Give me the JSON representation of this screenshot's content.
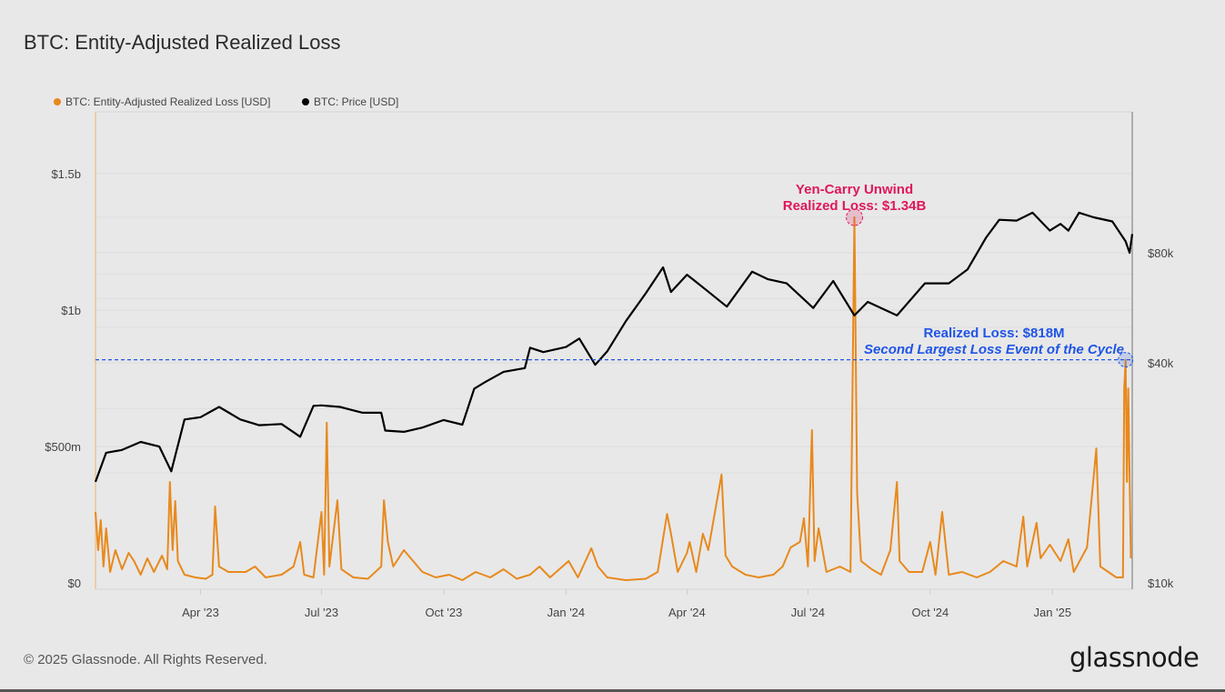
{
  "title": "BTC: Entity-Adjusted Realized Loss",
  "footer": "© 2025 Glassnode. All Rights Reserved.",
  "logo": "glassnode",
  "colors": {
    "loss": "#e8891c",
    "price": "#000000",
    "yen_annotation": "#e0175a",
    "second_annotation": "#1f55e6",
    "background": "#e8e8e8"
  },
  "chart_data": {
    "type": "line",
    "title": "BTC: Entity-Adjusted Realized Loss",
    "xlim": [
      "2023-01-12",
      "2025-03-02"
    ],
    "x_ticks": [
      {
        "date": "2023-04-01",
        "label": "Apr '23"
      },
      {
        "date": "2023-07-01",
        "label": "Jul '23"
      },
      {
        "date": "2023-10-01",
        "label": "Oct '23"
      },
      {
        "date": "2024-01-01",
        "label": "Jan '24"
      },
      {
        "date": "2024-04-01",
        "label": "Apr '24"
      },
      {
        "date": "2024-07-01",
        "label": "Jul '24"
      },
      {
        "date": "2024-10-01",
        "label": "Oct '24"
      },
      {
        "date": "2025-01-01",
        "label": "Jan '25"
      }
    ],
    "left_axis": {
      "scale": "linear",
      "unit": "USD millions",
      "ylim": [
        0,
        1750
      ],
      "ticks": [
        {
          "value": 0,
          "label": "$0"
        },
        {
          "value": 500,
          "label": "$500m"
        },
        {
          "value": 1000,
          "label": "$1b"
        },
        {
          "value": 1500,
          "label": "$1.5b"
        }
      ]
    },
    "right_axis": {
      "scale": "log",
      "unit": "USD",
      "ylim": [
        10000,
        290000
      ],
      "ticks": [
        {
          "value": 10000,
          "label": "$10k"
        },
        {
          "value": 40000,
          "label": "$40k"
        },
        {
          "value": 80000,
          "label": "$80k"
        }
      ]
    },
    "legend_position": "top-left",
    "series": [
      {
        "name": "BTC: Entity-Adjusted Realized Loss [USD]",
        "axis": "left",
        "color": "#e8891c",
        "points": [
          [
            "2023-01-12",
            260
          ],
          [
            "2023-01-14",
            120
          ],
          [
            "2023-01-16",
            230
          ],
          [
            "2023-01-18",
            60
          ],
          [
            "2023-01-20",
            200
          ],
          [
            "2023-01-23",
            40
          ],
          [
            "2023-01-27",
            120
          ],
          [
            "2023-02-01",
            50
          ],
          [
            "2023-02-06",
            110
          ],
          [
            "2023-02-10",
            80
          ],
          [
            "2023-02-15",
            30
          ],
          [
            "2023-02-20",
            90
          ],
          [
            "2023-02-25",
            40
          ],
          [
            "2023-03-03",
            100
          ],
          [
            "2023-03-07",
            50
          ],
          [
            "2023-03-09",
            370
          ],
          [
            "2023-03-11",
            120
          ],
          [
            "2023-03-13",
            300
          ],
          [
            "2023-03-15",
            80
          ],
          [
            "2023-03-20",
            30
          ],
          [
            "2023-03-28",
            20
          ],
          [
            "2023-04-05",
            15
          ],
          [
            "2023-04-10",
            30
          ],
          [
            "2023-04-12",
            280
          ],
          [
            "2023-04-15",
            60
          ],
          [
            "2023-04-22",
            40
          ],
          [
            "2023-05-05",
            40
          ],
          [
            "2023-05-12",
            60
          ],
          [
            "2023-05-20",
            20
          ],
          [
            "2023-06-01",
            30
          ],
          [
            "2023-06-10",
            60
          ],
          [
            "2023-06-15",
            150
          ],
          [
            "2023-06-18",
            30
          ],
          [
            "2023-06-25",
            20
          ],
          [
            "2023-07-01",
            260
          ],
          [
            "2023-07-03",
            30
          ],
          [
            "2023-07-05",
            587
          ],
          [
            "2023-07-07",
            60
          ],
          [
            "2023-07-13",
            303
          ],
          [
            "2023-07-16",
            50
          ],
          [
            "2023-07-25",
            20
          ],
          [
            "2023-08-05",
            15
          ],
          [
            "2023-08-15",
            60
          ],
          [
            "2023-08-17",
            303
          ],
          [
            "2023-08-20",
            150
          ],
          [
            "2023-08-24",
            60
          ],
          [
            "2023-09-01",
            120
          ],
          [
            "2023-09-08",
            80
          ],
          [
            "2023-09-15",
            40
          ],
          [
            "2023-09-25",
            20
          ],
          [
            "2023-10-05",
            30
          ],
          [
            "2023-10-15",
            10
          ],
          [
            "2023-10-25",
            40
          ],
          [
            "2023-11-05",
            20
          ],
          [
            "2023-11-15",
            50
          ],
          [
            "2023-11-25",
            15
          ],
          [
            "2023-12-05",
            30
          ],
          [
            "2023-12-12",
            60
          ],
          [
            "2023-12-20",
            20
          ],
          [
            "2024-01-03",
            80
          ],
          [
            "2024-01-10",
            20
          ],
          [
            "2024-01-20",
            127
          ],
          [
            "2024-01-25",
            60
          ],
          [
            "2024-02-01",
            20
          ],
          [
            "2024-02-15",
            10
          ],
          [
            "2024-03-01",
            15
          ],
          [
            "2024-03-10",
            40
          ],
          [
            "2024-03-17",
            253
          ],
          [
            "2024-03-20",
            180
          ],
          [
            "2024-03-25",
            40
          ],
          [
            "2024-04-01",
            110
          ],
          [
            "2024-04-03",
            150
          ],
          [
            "2024-04-08",
            40
          ],
          [
            "2024-04-13",
            180
          ],
          [
            "2024-04-17",
            120
          ],
          [
            "2024-04-27",
            397
          ],
          [
            "2024-04-30",
            100
          ],
          [
            "2024-05-05",
            60
          ],
          [
            "2024-05-15",
            30
          ],
          [
            "2024-05-25",
            20
          ],
          [
            "2024-06-05",
            30
          ],
          [
            "2024-06-12",
            60
          ],
          [
            "2024-06-18",
            130
          ],
          [
            "2024-06-25",
            150
          ],
          [
            "2024-06-28",
            237
          ],
          [
            "2024-07-01",
            60
          ],
          [
            "2024-07-04",
            560
          ],
          [
            "2024-07-06",
            80
          ],
          [
            "2024-07-09",
            200
          ],
          [
            "2024-07-15",
            40
          ],
          [
            "2024-07-25",
            60
          ],
          [
            "2024-08-02",
            40
          ],
          [
            "2024-08-05",
            1340
          ],
          [
            "2024-08-07",
            330
          ],
          [
            "2024-08-10",
            80
          ],
          [
            "2024-08-18",
            50
          ],
          [
            "2024-08-25",
            30
          ],
          [
            "2024-09-01",
            120
          ],
          [
            "2024-09-06",
            370
          ],
          [
            "2024-09-08",
            80
          ],
          [
            "2024-09-15",
            40
          ],
          [
            "2024-09-25",
            40
          ],
          [
            "2024-10-01",
            150
          ],
          [
            "2024-10-05",
            30
          ],
          [
            "2024-10-10",
            260
          ],
          [
            "2024-10-15",
            30
          ],
          [
            "2024-10-25",
            40
          ],
          [
            "2024-11-05",
            20
          ],
          [
            "2024-11-15",
            40
          ],
          [
            "2024-11-25",
            80
          ],
          [
            "2024-12-05",
            60
          ],
          [
            "2024-12-10",
            243
          ],
          [
            "2024-12-13",
            60
          ],
          [
            "2024-12-20",
            220
          ],
          [
            "2024-12-23",
            90
          ],
          [
            "2024-12-30",
            140
          ],
          [
            "2025-01-07",
            80
          ],
          [
            "2025-01-13",
            160
          ],
          [
            "2025-01-17",
            40
          ],
          [
            "2025-01-27",
            130
          ],
          [
            "2025-02-03",
            493
          ],
          [
            "2025-02-06",
            60
          ],
          [
            "2025-02-12",
            40
          ],
          [
            "2025-02-18",
            20
          ],
          [
            "2025-02-23",
            20
          ],
          [
            "2025-02-24",
            713
          ],
          [
            "2025-02-25",
            818
          ],
          [
            "2025-02-26",
            370
          ],
          [
            "2025-02-27",
            713
          ],
          [
            "2025-03-01",
            90
          ]
        ]
      },
      {
        "name": "BTC: Price [USD]",
        "axis": "right",
        "color": "#000000",
        "points": [
          [
            "2023-01-12",
            18900
          ],
          [
            "2023-01-20",
            22700
          ],
          [
            "2023-02-01",
            23100
          ],
          [
            "2023-02-15",
            24300
          ],
          [
            "2023-03-01",
            23600
          ],
          [
            "2023-03-10",
            20200
          ],
          [
            "2023-03-20",
            28000
          ],
          [
            "2023-04-01",
            28400
          ],
          [
            "2023-04-15",
            30300
          ],
          [
            "2023-05-01",
            28000
          ],
          [
            "2023-05-15",
            27000
          ],
          [
            "2023-06-01",
            27200
          ],
          [
            "2023-06-15",
            25100
          ],
          [
            "2023-06-25",
            30500
          ],
          [
            "2023-07-01",
            30600
          ],
          [
            "2023-07-15",
            30300
          ],
          [
            "2023-08-01",
            29200
          ],
          [
            "2023-08-15",
            29200
          ],
          [
            "2023-08-18",
            26100
          ],
          [
            "2023-09-01",
            25900
          ],
          [
            "2023-09-15",
            26600
          ],
          [
            "2023-10-01",
            27900
          ],
          [
            "2023-10-15",
            27100
          ],
          [
            "2023-10-24",
            34000
          ],
          [
            "2023-11-01",
            35400
          ],
          [
            "2023-11-15",
            37800
          ],
          [
            "2023-12-01",
            38700
          ],
          [
            "2023-12-05",
            44000
          ],
          [
            "2023-12-15",
            42800
          ],
          [
            "2024-01-01",
            44200
          ],
          [
            "2024-01-11",
            46600
          ],
          [
            "2024-01-23",
            39500
          ],
          [
            "2024-02-01",
            43000
          ],
          [
            "2024-02-15",
            52000
          ],
          [
            "2024-03-01",
            62000
          ],
          [
            "2024-03-14",
            73000
          ],
          [
            "2024-03-20",
            62500
          ],
          [
            "2024-04-01",
            69700
          ],
          [
            "2024-04-15",
            63500
          ],
          [
            "2024-05-01",
            57000
          ],
          [
            "2024-05-20",
            71000
          ],
          [
            "2024-06-01",
            67700
          ],
          [
            "2024-06-15",
            66000
          ],
          [
            "2024-07-05",
            56500
          ],
          [
            "2024-07-20",
            67000
          ],
          [
            "2024-08-05",
            53900
          ],
          [
            "2024-08-15",
            58700
          ],
          [
            "2024-09-06",
            53900
          ],
          [
            "2024-09-27",
            66000
          ],
          [
            "2024-10-15",
            66000
          ],
          [
            "2024-10-29",
            72000
          ],
          [
            "2024-11-12",
            88000
          ],
          [
            "2024-11-22",
            98500
          ],
          [
            "2024-12-05",
            98000
          ],
          [
            "2024-12-17",
            103000
          ],
          [
            "2024-12-30",
            92000
          ],
          [
            "2025-01-07",
            96000
          ],
          [
            "2025-01-13",
            92000
          ],
          [
            "2025-01-21",
            103000
          ],
          [
            "2025-02-01",
            100000
          ],
          [
            "2025-02-15",
            97500
          ],
          [
            "2025-02-25",
            86000
          ],
          [
            "2025-02-28",
            80000
          ],
          [
            "2025-03-02",
            90000
          ]
        ]
      }
    ],
    "annotations": [
      {
        "lines": [
          "Yen-Carry Unwind",
          "Realized Loss: $1.34B"
        ],
        "date": "2024-08-05",
        "value": 1340,
        "color": "#e0175a"
      },
      {
        "lines": [
          "Realized Loss: $818M",
          "Second Largest Loss Event of the Cycle"
        ],
        "date": "2025-02-25",
        "value": 818,
        "color": "#1f55e6",
        "reference_line": 818
      }
    ]
  }
}
